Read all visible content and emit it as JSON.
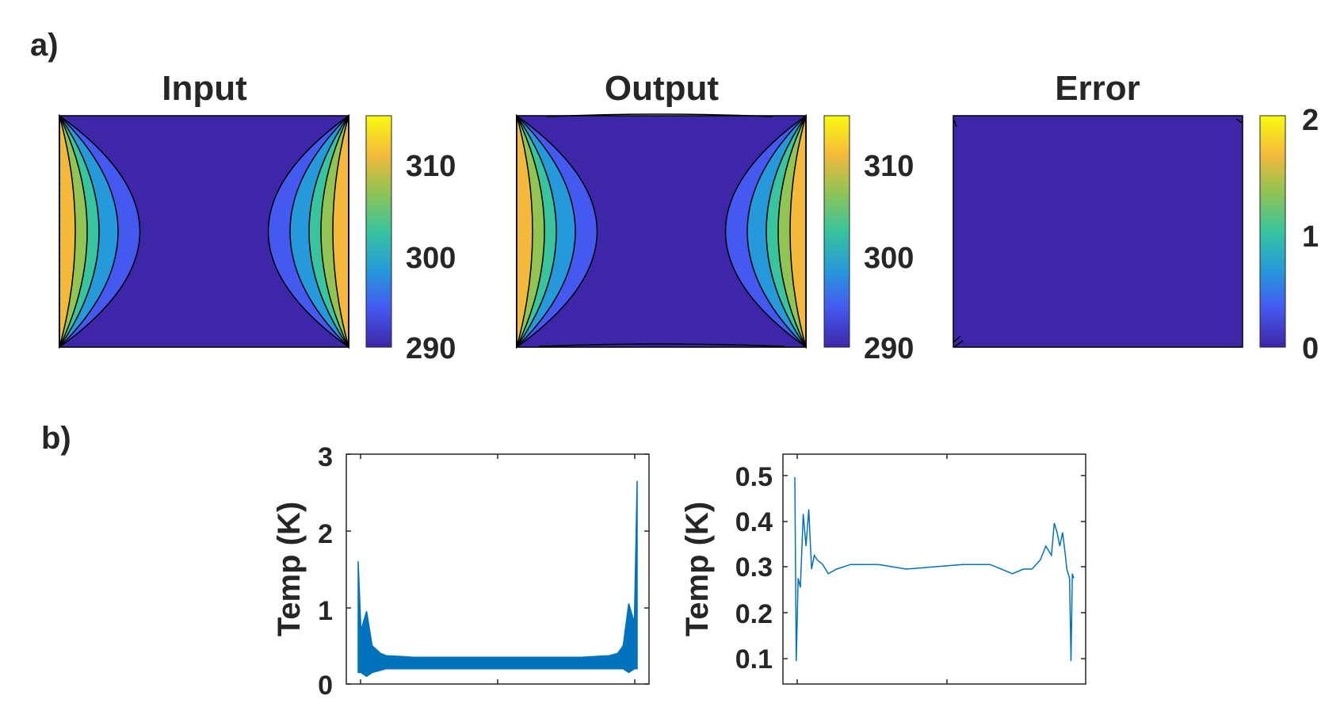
{
  "panels": {
    "a": "a)",
    "b": "b)"
  },
  "colors": {
    "c0": "#3e26a8",
    "c1": "#4459f0",
    "c2": "#2699da",
    "c3": "#37c49e",
    "c4": "#91c453",
    "c5": "#f4b93b",
    "c6": "#f9fb0e",
    "line": "#0072bd",
    "axis": "#262626"
  },
  "chart_data": [
    {
      "type": "heatmap",
      "title": "Input",
      "colorbar": {
        "ticks": [
          "290",
          "300",
          "310"
        ],
        "range": [
          288,
          316
        ]
      }
    },
    {
      "type": "heatmap",
      "title": "Output",
      "colorbar": {
        "ticks": [
          "290",
          "300",
          "310"
        ],
        "range": [
          288,
          316
        ]
      }
    },
    {
      "type": "heatmap",
      "title": "Error",
      "colorbar": {
        "ticks": [
          "0",
          "1",
          "2"
        ],
        "range": [
          0,
          2.1
        ]
      }
    },
    {
      "type": "line",
      "xlabel": "",
      "ylabel": "Temp (K)",
      "ylim": [
        0,
        3
      ],
      "yticks": [
        "0",
        "1",
        "2",
        "3"
      ],
      "x": [
        0,
        0.01,
        0.03,
        0.05,
        0.08,
        0.1,
        0.2,
        0.3,
        0.4,
        0.5,
        0.6,
        0.7,
        0.8,
        0.9,
        0.93,
        0.95,
        0.97,
        0.99,
        1.0
      ],
      "series": [
        {
          "values": [
            1.6,
            0.7,
            0.95,
            0.5,
            0.4,
            0.37,
            0.35,
            0.35,
            0.35,
            0.35,
            0.35,
            0.35,
            0.35,
            0.37,
            0.4,
            0.5,
            1.05,
            0.8,
            2.65
          ]
        },
        {
          "values": [
            0.15,
            0.15,
            0.1,
            0.15,
            0.18,
            0.2,
            0.2,
            0.2,
            0.2,
            0.2,
            0.2,
            0.2,
            0.2,
            0.2,
            0.2,
            0.2,
            0.15,
            0.2,
            0.2
          ]
        }
      ]
    },
    {
      "type": "line",
      "xlabel": "",
      "ylabel": "Temp (K)",
      "ylim": [
        0.05,
        0.55
      ],
      "yticks": [
        "0.1",
        "0.2",
        "0.3",
        "0.4",
        "0.5"
      ],
      "x": [
        0,
        0.005,
        0.012,
        0.02,
        0.03,
        0.04,
        0.05,
        0.06,
        0.07,
        0.08,
        0.1,
        0.12,
        0.15,
        0.2,
        0.3,
        0.4,
        0.5,
        0.6,
        0.7,
        0.78,
        0.82,
        0.85,
        0.88,
        0.9,
        0.92,
        0.93,
        0.94,
        0.95,
        0.96,
        0.97,
        0.975,
        0.985,
        0.99,
        0.995,
        1.0
      ],
      "values": [
        0.5,
        0.1,
        0.28,
        0.26,
        0.42,
        0.35,
        0.43,
        0.3,
        0.33,
        0.32,
        0.31,
        0.29,
        0.3,
        0.31,
        0.31,
        0.3,
        0.305,
        0.31,
        0.31,
        0.29,
        0.3,
        0.3,
        0.32,
        0.35,
        0.33,
        0.4,
        0.38,
        0.35,
        0.38,
        0.33,
        0.3,
        0.28,
        0.1,
        0.29,
        0.28
      ]
    }
  ]
}
